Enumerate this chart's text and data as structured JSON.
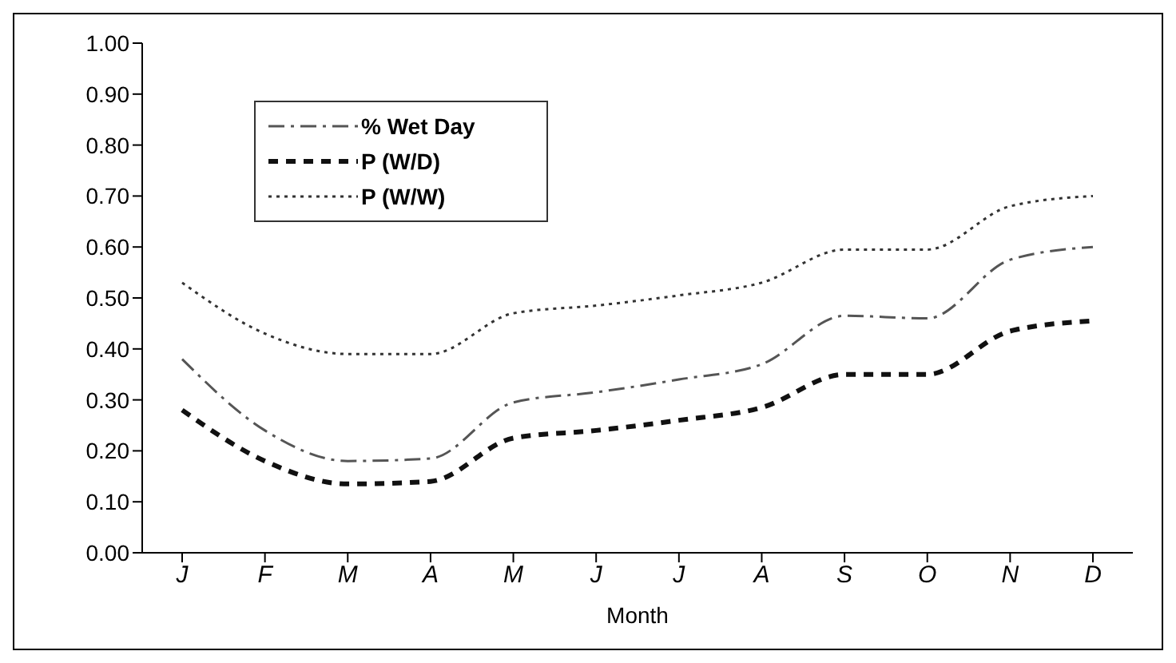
{
  "chart_data": {
    "type": "line",
    "xlabel": "Month",
    "categories": [
      "J",
      "F",
      "M",
      "A",
      "M",
      "J",
      "J",
      "A",
      "S",
      "O",
      "N",
      "D"
    ],
    "series": [
      {
        "name": "% Wet Day",
        "color": "#555555",
        "line_style": "dashdot",
        "values": [
          0.38,
          0.24,
          0.18,
          0.185,
          0.295,
          0.315,
          0.34,
          0.37,
          0.465,
          0.46,
          0.575,
          0.6
        ]
      },
      {
        "name": "P (W/D)",
        "color": "#111111",
        "line_style": "dashed",
        "values": [
          0.28,
          0.18,
          0.135,
          0.14,
          0.225,
          0.24,
          0.26,
          0.285,
          0.35,
          0.35,
          0.435,
          0.455
        ]
      },
      {
        "name": "P (W/W)",
        "color": "#333333",
        "line_style": "dotted",
        "values": [
          0.53,
          0.43,
          0.39,
          0.39,
          0.47,
          0.485,
          0.505,
          0.53,
          0.595,
          0.595,
          0.68,
          0.7
        ]
      }
    ],
    "ylim": [
      0,
      1
    ],
    "yticks": [
      {
        "value": 0,
        "label": "0.00"
      },
      {
        "value": 0.1,
        "label": "0.10"
      },
      {
        "value": 0.2,
        "label": "0.20"
      },
      {
        "value": 0.3,
        "label": "0.30"
      },
      {
        "value": 0.4,
        "label": "0.40"
      },
      {
        "value": 0.5,
        "label": "0.50"
      },
      {
        "value": 0.6,
        "label": "0.60"
      },
      {
        "value": 0.7,
        "label": "0.70"
      },
      {
        "value": 0.8,
        "label": "0.80"
      },
      {
        "value": 0.9,
        "label": "0.90"
      },
      {
        "value": 1,
        "label": "1.00"
      }
    ],
    "grid": false,
    "legend": "top left",
    "marker": "none"
  }
}
